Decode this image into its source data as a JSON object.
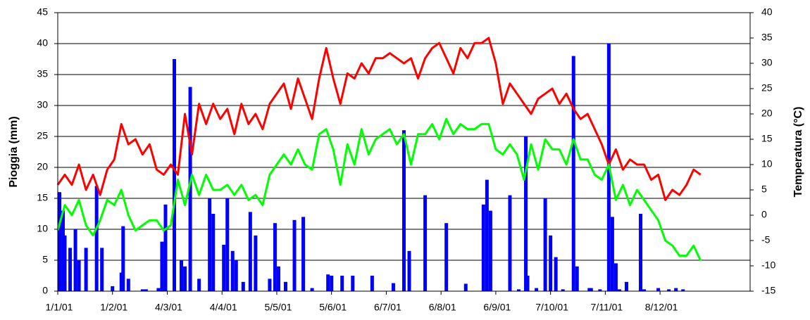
{
  "chart_data": {
    "type": "combo",
    "y_label": "Pioggia (mm)",
    "y2_label": "Temperatura (°C)",
    "xlim": [
      0,
      392
    ],
    "xticks": [
      {
        "value": 0,
        "label": "1/1/01"
      },
      {
        "value": 31,
        "label": "1/2/01"
      },
      {
        "value": 62,
        "label": "4/3/01"
      },
      {
        "value": 93,
        "label": "4/4/01"
      },
      {
        "value": 124,
        "label": "5/5/01"
      },
      {
        "value": 155,
        "label": "5/6/01"
      },
      {
        "value": 186,
        "label": "6/7/01"
      },
      {
        "value": 217,
        "label": "6/8/01"
      },
      {
        "value": 248,
        "label": "6/9/01"
      },
      {
        "value": 279,
        "label": "7/10/01"
      },
      {
        "value": 310,
        "label": "7/11/01"
      },
      {
        "value": 341,
        "label": "8/12/01"
      }
    ],
    "ylim": [
      0,
      45
    ],
    "yticks": [
      0,
      5,
      10,
      15,
      20,
      25,
      30,
      35,
      40,
      45
    ],
    "y2lim": [
      -15,
      40
    ],
    "y2ticks": [
      -15,
      -10,
      -5,
      0,
      5,
      10,
      15,
      20,
      25,
      30,
      35,
      40
    ],
    "grid": true,
    "series": [
      {
        "type": "bar",
        "color": "#0000ff",
        "axis": "y",
        "x": [
          1,
          3,
          4,
          7,
          10,
          12,
          16,
          22,
          25,
          31,
          36,
          37,
          40,
          48,
          50,
          57,
          59,
          61,
          66,
          70,
          72,
          75,
          80,
          86,
          88,
          94,
          96,
          99,
          101,
          105,
          109,
          112,
          120,
          123,
          125,
          129,
          134,
          139,
          144,
          153,
          155,
          161,
          167,
          178,
          190,
          196,
          199,
          208,
          220,
          231,
          241,
          243,
          245,
          256,
          261,
          265,
          266,
          271,
          276,
          279,
          282,
          286,
          292,
          294,
          301,
          302,
          307,
          312,
          314,
          316,
          318,
          322,
          330,
          332,
          340,
          346,
          350,
          354
        ],
        "values": [
          16,
          13,
          9,
          7,
          10,
          5,
          7,
          17,
          7,
          0.8,
          3,
          10.5,
          2,
          0.3,
          0.3,
          0.5,
          8,
          14,
          37.5,
          5,
          4,
          33,
          2,
          15,
          12.5,
          7.5,
          15,
          6.5,
          5,
          1.5,
          12.8,
          9,
          2,
          11,
          4,
          1.5,
          11.5,
          12,
          0.5,
          2.7,
          2.5,
          2.5,
          2.5,
          2.5,
          1.3,
          26,
          6.5,
          15.5,
          11,
          1.2,
          14,
          18,
          13,
          15.5,
          0.3,
          25,
          2.5,
          0.5,
          15,
          9,
          5.5,
          0.3,
          38,
          4,
          0.5,
          0.5,
          0.3,
          40,
          12,
          4.5,
          0.3,
          1.5,
          12.5,
          0.3,
          0.5,
          0.3,
          0.5,
          0.3
        ]
      },
      {
        "type": "line",
        "color": "#ff0000",
        "axis": "y2",
        "x": [
          0,
          4,
          8,
          12,
          16,
          20,
          24,
          28,
          32,
          36,
          40,
          44,
          48,
          52,
          56,
          60,
          64,
          68,
          72,
          76,
          80,
          84,
          88,
          92,
          96,
          100,
          104,
          108,
          112,
          116,
          120,
          124,
          128,
          132,
          136,
          140,
          144,
          148,
          152,
          156,
          160,
          164,
          168,
          172,
          176,
          180,
          184,
          188,
          192,
          196,
          200,
          204,
          208,
          212,
          216,
          220,
          224,
          228,
          232,
          236,
          240,
          244,
          248,
          252,
          256,
          260,
          264,
          268,
          272,
          276,
          280,
          284,
          288,
          292,
          296,
          300,
          304,
          308,
          312,
          316,
          320,
          324,
          328,
          332,
          336,
          340,
          344,
          348,
          352,
          356,
          360,
          364
        ],
        "values": [
          6,
          8,
          6,
          10,
          5,
          8,
          4,
          9,
          11,
          18,
          14,
          15,
          12,
          14,
          9,
          8,
          10,
          8,
          20,
          12,
          22,
          18,
          22,
          19,
          21,
          16,
          22,
          18,
          20,
          17,
          22,
          24,
          26,
          21,
          27,
          23,
          19,
          27,
          33,
          27,
          22,
          28,
          27,
          30,
          28,
          31,
          31,
          32,
          31,
          30,
          31,
          27,
          31,
          33,
          34,
          31,
          28,
          33,
          31,
          34,
          34,
          35,
          30,
          22,
          26,
          24,
          22,
          20,
          23,
          24,
          25,
          22,
          24,
          21,
          19,
          20,
          17,
          14,
          10,
          13,
          9,
          11,
          10,
          10,
          7,
          8,
          3,
          5,
          4,
          6,
          9,
          8
        ]
      },
      {
        "type": "line",
        "color": "#00ff00",
        "axis": "y2",
        "x": [
          0,
          4,
          8,
          12,
          16,
          20,
          24,
          28,
          32,
          36,
          40,
          44,
          48,
          52,
          56,
          60,
          64,
          68,
          72,
          76,
          80,
          84,
          88,
          92,
          96,
          100,
          104,
          108,
          112,
          116,
          120,
          124,
          128,
          132,
          136,
          140,
          144,
          148,
          152,
          156,
          160,
          164,
          168,
          172,
          176,
          180,
          184,
          188,
          192,
          196,
          200,
          204,
          208,
          212,
          216,
          220,
          224,
          228,
          232,
          236,
          240,
          244,
          248,
          252,
          256,
          260,
          264,
          268,
          272,
          276,
          280,
          284,
          288,
          292,
          296,
          300,
          304,
          308,
          312,
          316,
          320,
          324,
          328,
          332,
          336,
          340,
          344,
          348,
          352,
          356,
          360,
          364
        ],
        "values": [
          -3,
          2,
          0,
          3,
          -2,
          -4,
          -1,
          3,
          2,
          5,
          0,
          -3,
          -2,
          -1,
          -1,
          -3,
          -2,
          7,
          2,
          8,
          4,
          8,
          5,
          5,
          6,
          4,
          6,
          3,
          4,
          2,
          8,
          10,
          12,
          10,
          13,
          10,
          9,
          16,
          17,
          13,
          6,
          14,
          10,
          17,
          12,
          15,
          16,
          17,
          14,
          16,
          10,
          16,
          16,
          18,
          15,
          19,
          16,
          18,
          17,
          17,
          18,
          18,
          13,
          12,
          14,
          12,
          7,
          14,
          9,
          15,
          13,
          13,
          10,
          15,
          11,
          11,
          8,
          7,
          10,
          3,
          6,
          2,
          5,
          3,
          1,
          -1,
          -5,
          -6,
          -8,
          -8,
          -6,
          -9
        ]
      }
    ]
  }
}
